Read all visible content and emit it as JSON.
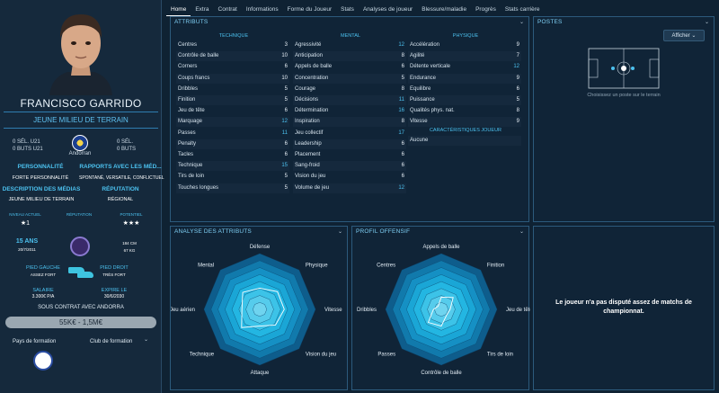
{
  "player": {
    "name": "FRANCISCO GARRIDO",
    "position": "JEUNE MILIEU DE TERRAIN",
    "left_sel": "0 SÉL. U21",
    "left_buts": "0 BUTS U21",
    "nation": "Andorran",
    "right_sel": "0 SÉL.",
    "right_buts": "0 BUTS",
    "personality_label": "PERSONNALITÉ",
    "personality": "FORTE PERSONNALITÉ",
    "media_rel_label": "RAPPORTS AVEC LES MÉD...",
    "media_rel": "SPONTANÉ, VERSATILE, CONFLICTUEL",
    "media_desc_label": "DESCRIPTION DES MÉDIAS",
    "media_desc": "JEUNE MILIEU DE TERRAIN",
    "reputation_label": "RÉPUTATION",
    "reputation": "RÉGIONAL",
    "niveau_label": "NIVEAU ACTUEL",
    "niveau": "★1",
    "reputation_small_label": "RÉPUTATION",
    "potentiel_label": "POTENTIEL",
    "potentiel": "★★★",
    "age": "15 ANS",
    "dob": "20/7/2011",
    "height": "184 CM",
    "weight": "67 KG",
    "left_foot_label": "PIED GAUCHE",
    "left_foot": "ASSEZ FORT",
    "right_foot_label": "PIED DROIT",
    "right_foot": "TRÈS FORT",
    "salary_label": "SALAIRE",
    "salary": "3.300€ P/A",
    "expiry_label": "EXPIRE LE",
    "expiry": "30/6/2030",
    "contract": "SOUS CONTRAT AVEC ANDORRA",
    "value": "55K€ - 1,5M€",
    "training_country_label": "Pays de formation",
    "training_club_label": "Club de formation"
  },
  "tabs": [
    "Home",
    "Extra",
    "Contrat",
    "Informations",
    "Forme du Joueur",
    "Stats",
    "Analyses de joueur",
    "Blessure/maladie",
    "Progrès",
    "Stats carrière"
  ],
  "attributes": {
    "title": "ATTRIBUTS",
    "technique_label": "TECHNIQUE",
    "mental_label": "MENTAL",
    "physique_label": "PHYSIQUE",
    "technique": [
      {
        "name": "Centres",
        "value": "3"
      },
      {
        "name": "Contrôle de balle",
        "value": "10"
      },
      {
        "name": "Corners",
        "value": "6"
      },
      {
        "name": "Coups francs",
        "value": "10"
      },
      {
        "name": "Dribbles",
        "value": "5"
      },
      {
        "name": "Finition",
        "value": "5"
      },
      {
        "name": "Jeu de tête",
        "value": "6"
      },
      {
        "name": "Marquage",
        "value": "12"
      },
      {
        "name": "Passes",
        "value": "11"
      },
      {
        "name": "Penalty",
        "value": "6"
      },
      {
        "name": "Tacles",
        "value": "6"
      },
      {
        "name": "Technique",
        "value": "15"
      },
      {
        "name": "Tirs de loin",
        "value": "5"
      },
      {
        "name": "Touches longues",
        "value": "5"
      }
    ],
    "mental": [
      {
        "name": "Agressivité",
        "value": "12"
      },
      {
        "name": "Anticipation",
        "value": "8"
      },
      {
        "name": "Appels de balle",
        "value": "6"
      },
      {
        "name": "Concentration",
        "value": "5"
      },
      {
        "name": "Courage",
        "value": "8"
      },
      {
        "name": "Décisions",
        "value": "11"
      },
      {
        "name": "Détermination",
        "value": "16"
      },
      {
        "name": "Inspiration",
        "value": "8"
      },
      {
        "name": "Jeu collectif",
        "value": "17"
      },
      {
        "name": "Leadership",
        "value": "6"
      },
      {
        "name": "Placement",
        "value": "6"
      },
      {
        "name": "Sang-froid",
        "value": "6"
      },
      {
        "name": "Vision du jeu",
        "value": "6"
      },
      {
        "name": "Volume de jeu",
        "value": "12"
      }
    ],
    "physique": [
      {
        "name": "Accélération",
        "value": "9"
      },
      {
        "name": "Agilité",
        "value": "7"
      },
      {
        "name": "Détente verticale",
        "value": "12"
      },
      {
        "name": "Endurance",
        "value": "9"
      },
      {
        "name": "Equilibre",
        "value": "6"
      },
      {
        "name": "Puissance",
        "value": "5"
      },
      {
        "name": "Qualités phys. nat.",
        "value": "8"
      },
      {
        "name": "Vitesse",
        "value": "9"
      }
    ],
    "caract_label": "CARACTÉRISTIQUES JOUEUR",
    "caract_value": "Aucune"
  },
  "postes": {
    "title": "POSTES",
    "afficher": "Afficher",
    "hint": "Choisissez un poste sur le terrain"
  },
  "analysis": {
    "title": "ANALYSE DES ATTRIBUTS",
    "labels": [
      "Défense",
      "Physique",
      "Vitesse",
      "Vision du jeu",
      "Attaque",
      "Technique",
      "Jeu aérien",
      "Mental"
    ]
  },
  "offensive": {
    "title": "PROFIL OFFENSIF",
    "labels": [
      "Appels de balle",
      "Finition",
      "Jeu de tête",
      "Tirs de loin",
      "Contrôle de balle",
      "Passes",
      "Dribbles",
      "Centres"
    ]
  },
  "matches": {
    "message": "Le joueur n'a pas disputé assez de matchs de championnat."
  },
  "colors": {
    "accent": "#4cc1ef",
    "panel": "#102437",
    "background": "#0f2233"
  }
}
